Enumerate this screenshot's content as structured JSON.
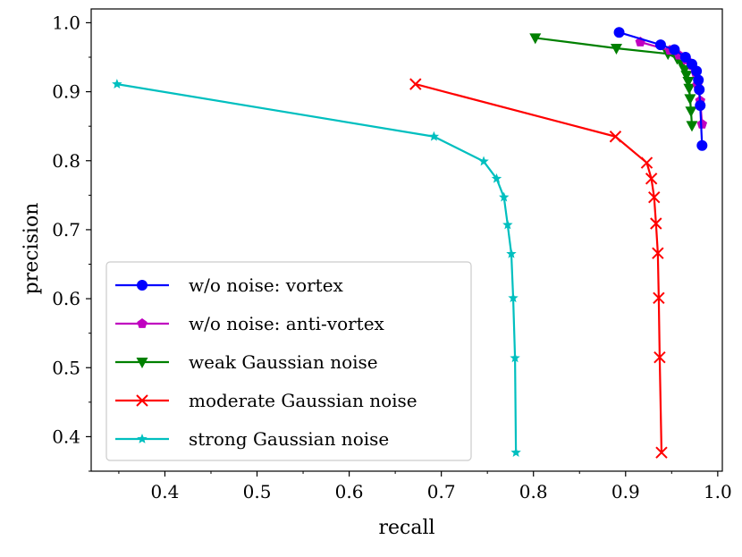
{
  "chart_data": {
    "type": "line",
    "title": "",
    "xlabel": "recall",
    "ylabel": "precision",
    "xlim": [
      0.32,
      1.005
    ],
    "ylim": [
      0.35,
      1.02
    ],
    "xticks": [
      "0.4",
      "0.5",
      "0.6",
      "0.7",
      "0.8",
      "0.9",
      "1.0"
    ],
    "yticks": [
      "0.4",
      "0.5",
      "0.6",
      "0.7",
      "0.8",
      "0.9",
      "1.0"
    ],
    "grid": false,
    "legend_position": "lower-left",
    "series": [
      {
        "name": "w/o noise: vortex",
        "color": "#0000ff",
        "marker": "circle",
        "x": [
          0.893,
          0.938,
          0.953,
          0.965,
          0.972,
          0.977,
          0.979,
          0.98,
          0.981,
          0.983
        ],
        "y": [
          0.986,
          0.968,
          0.961,
          0.95,
          0.94,
          0.93,
          0.917,
          0.903,
          0.88,
          0.822
        ]
      },
      {
        "name": "w/o noise: anti-vortex",
        "color": "#c000c0",
        "marker": "pentagon",
        "x": [
          0.916,
          0.948,
          0.958,
          0.966,
          0.972,
          0.976,
          0.978,
          0.981,
          0.983
        ],
        "y": [
          0.972,
          0.96,
          0.953,
          0.946,
          0.938,
          0.928,
          0.91,
          0.887,
          0.853
        ]
      },
      {
        "name": "weak Gaussian noise",
        "color": "#008000",
        "marker": "triangle-down",
        "x": [
          0.802,
          0.89,
          0.946,
          0.956,
          0.961,
          0.964,
          0.966,
          0.968,
          0.969,
          0.97,
          0.971,
          0.972
        ],
        "y": [
          0.978,
          0.963,
          0.955,
          0.948,
          0.94,
          0.932,
          0.924,
          0.915,
          0.905,
          0.89,
          0.872,
          0.851
        ]
      },
      {
        "name": "moderate Gaussian noise",
        "color": "#ff0000",
        "marker": "x",
        "x": [
          0.672,
          0.889,
          0.923,
          0.928,
          0.931,
          0.933,
          0.935,
          0.936,
          0.937,
          0.939
        ],
        "y": [
          0.911,
          0.835,
          0.797,
          0.774,
          0.747,
          0.709,
          0.666,
          0.601,
          0.515,
          0.377
        ]
      },
      {
        "name": "strong Gaussian noise",
        "color": "#00bfbf",
        "marker": "star",
        "x": [
          0.348,
          0.692,
          0.746,
          0.76,
          0.768,
          0.772,
          0.776,
          0.778,
          0.78,
          0.781
        ],
        "y": [
          0.911,
          0.835,
          0.799,
          0.774,
          0.747,
          0.707,
          0.665,
          0.601,
          0.514,
          0.377
        ]
      }
    ]
  }
}
